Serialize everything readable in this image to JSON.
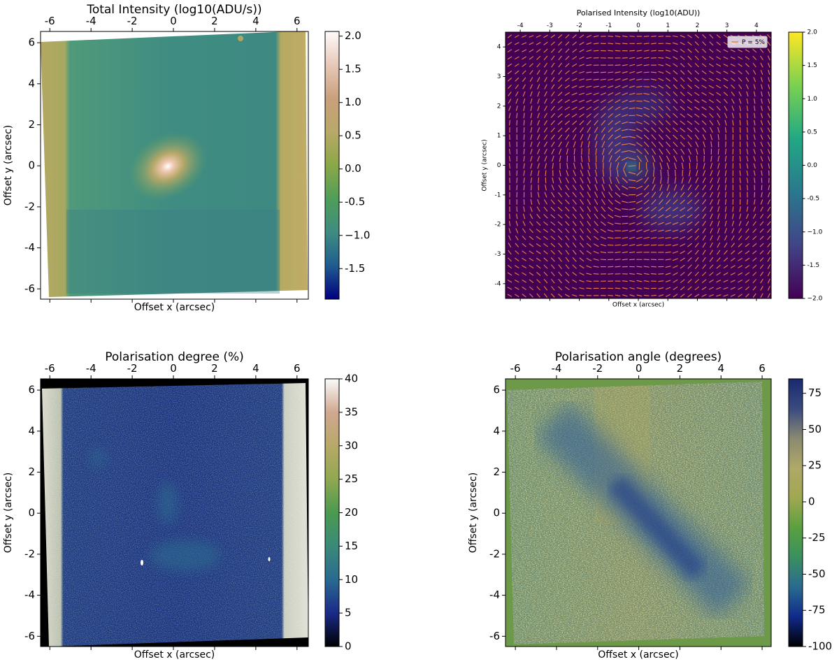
{
  "chart_data": [
    {
      "type": "image",
      "title": "Total Intensity (log10(ADU/s))",
      "xlabel": "Offset x (arcsec)",
      "ylabel": "Offset y (arcsec)",
      "xlim": [
        -6.45,
        6.55
      ],
      "ylim": [
        -6.5,
        6.55
      ],
      "xticks": [
        -6,
        -4,
        -2,
        0,
        2,
        4,
        6
      ],
      "yticks": [
        -6,
        -4,
        -2,
        0,
        2,
        4,
        6
      ],
      "clim": [
        -1.96,
        2.07
      ],
      "cticks": [
        -1.5,
        {
          "value": -1,
          "label": "−1.0"
        },
        -0.5,
        {
          "value": 0,
          "label": "0.0"
        },
        0.5,
        {
          "value": 1,
          "label": "1.0"
        },
        1.5,
        {
          "value": 2,
          "label": "2.0"
        }
      ],
      "colormap": [
        "#000080",
        "#1f5c8f",
        "#3e8c82",
        "#4f9e58",
        "#8aa848",
        "#b9a868",
        "#c9a07c",
        "#e8c8b8",
        "#fdfbfb"
      ]
    },
    {
      "type": "image",
      "title": "Polarised Intensity (log10(ADU))",
      "xlabel": "Offset x (arcsec)",
      "ylabel": "Offset y (arcsec)",
      "xlim": [
        -4.5,
        4.5
      ],
      "ylim": [
        -4.5,
        4.5
      ],
      "xticks": [
        -4,
        -3,
        -2,
        -1,
        0,
        1,
        2,
        3,
        4
      ],
      "yticks": [
        -4,
        -3,
        -2,
        -1,
        0,
        1,
        2,
        3,
        4
      ],
      "clim": [
        -2,
        2
      ],
      "cticks": [
        {
          "value": -2,
          "label": "−2.0"
        },
        -1.5,
        {
          "value": -1,
          "label": "−1.0"
        },
        -0.5,
        {
          "value": 0,
          "label": "0.0"
        },
        0.5,
        {
          "value": 1,
          "label": "1.0"
        },
        1.5,
        {
          "value": 2,
          "label": "2.0"
        }
      ],
      "colormap": [
        "#440154",
        "#414487",
        "#2a788e",
        "#22a884",
        "#7ad151",
        "#fde725"
      ],
      "legend": "P = 5%",
      "legend_loc": "upper right",
      "vector_color": "#e8844a"
    },
    {
      "type": "image",
      "title": "Polarisation degree (%)",
      "xlabel": "Offset x (arcsec)",
      "ylabel": "Offset y (arcsec)",
      "xlim": [
        -6.45,
        6.55
      ],
      "ylim": [
        -6.5,
        6.55
      ],
      "xticks": [
        -6,
        -4,
        -2,
        0,
        2,
        4,
        6
      ],
      "yticks": [
        -6,
        -4,
        -2,
        0,
        2,
        4,
        6
      ],
      "clim": [
        0,
        40
      ],
      "cticks": [
        0,
        5,
        10,
        15,
        20,
        25,
        30,
        35,
        40
      ],
      "colormap": [
        "#000000",
        "#1a2a8a",
        "#2a6a90",
        "#3a8a7a",
        "#4a9a50",
        "#90a850",
        "#b8a868",
        "#d0a890",
        "#fafafa"
      ]
    },
    {
      "type": "image",
      "title": "Polarisation angle (degrees)",
      "xlabel": "Offset x (arcsec)",
      "ylabel": "Offset y (arcsec)",
      "xlim": [
        -6.48,
        6.44
      ],
      "ylim": [
        -6.5,
        6.55
      ],
      "xticks": [
        -6,
        -4,
        -2,
        0,
        2,
        4,
        6
      ],
      "yticks": [
        -6,
        -4,
        -2,
        0,
        2,
        4,
        6
      ],
      "clim": [
        -100,
        85
      ],
      "cticks": [
        -100,
        -75,
        -50,
        -25,
        0,
        25,
        50,
        75
      ],
      "colormap": [
        "#000000",
        "#102a8a",
        "#2a6a90",
        "#3a9060",
        "#5aa040",
        "#a0a850",
        "#b0a868",
        "#8a8a70",
        "#3a4a80",
        "#182a70"
      ]
    }
  ]
}
